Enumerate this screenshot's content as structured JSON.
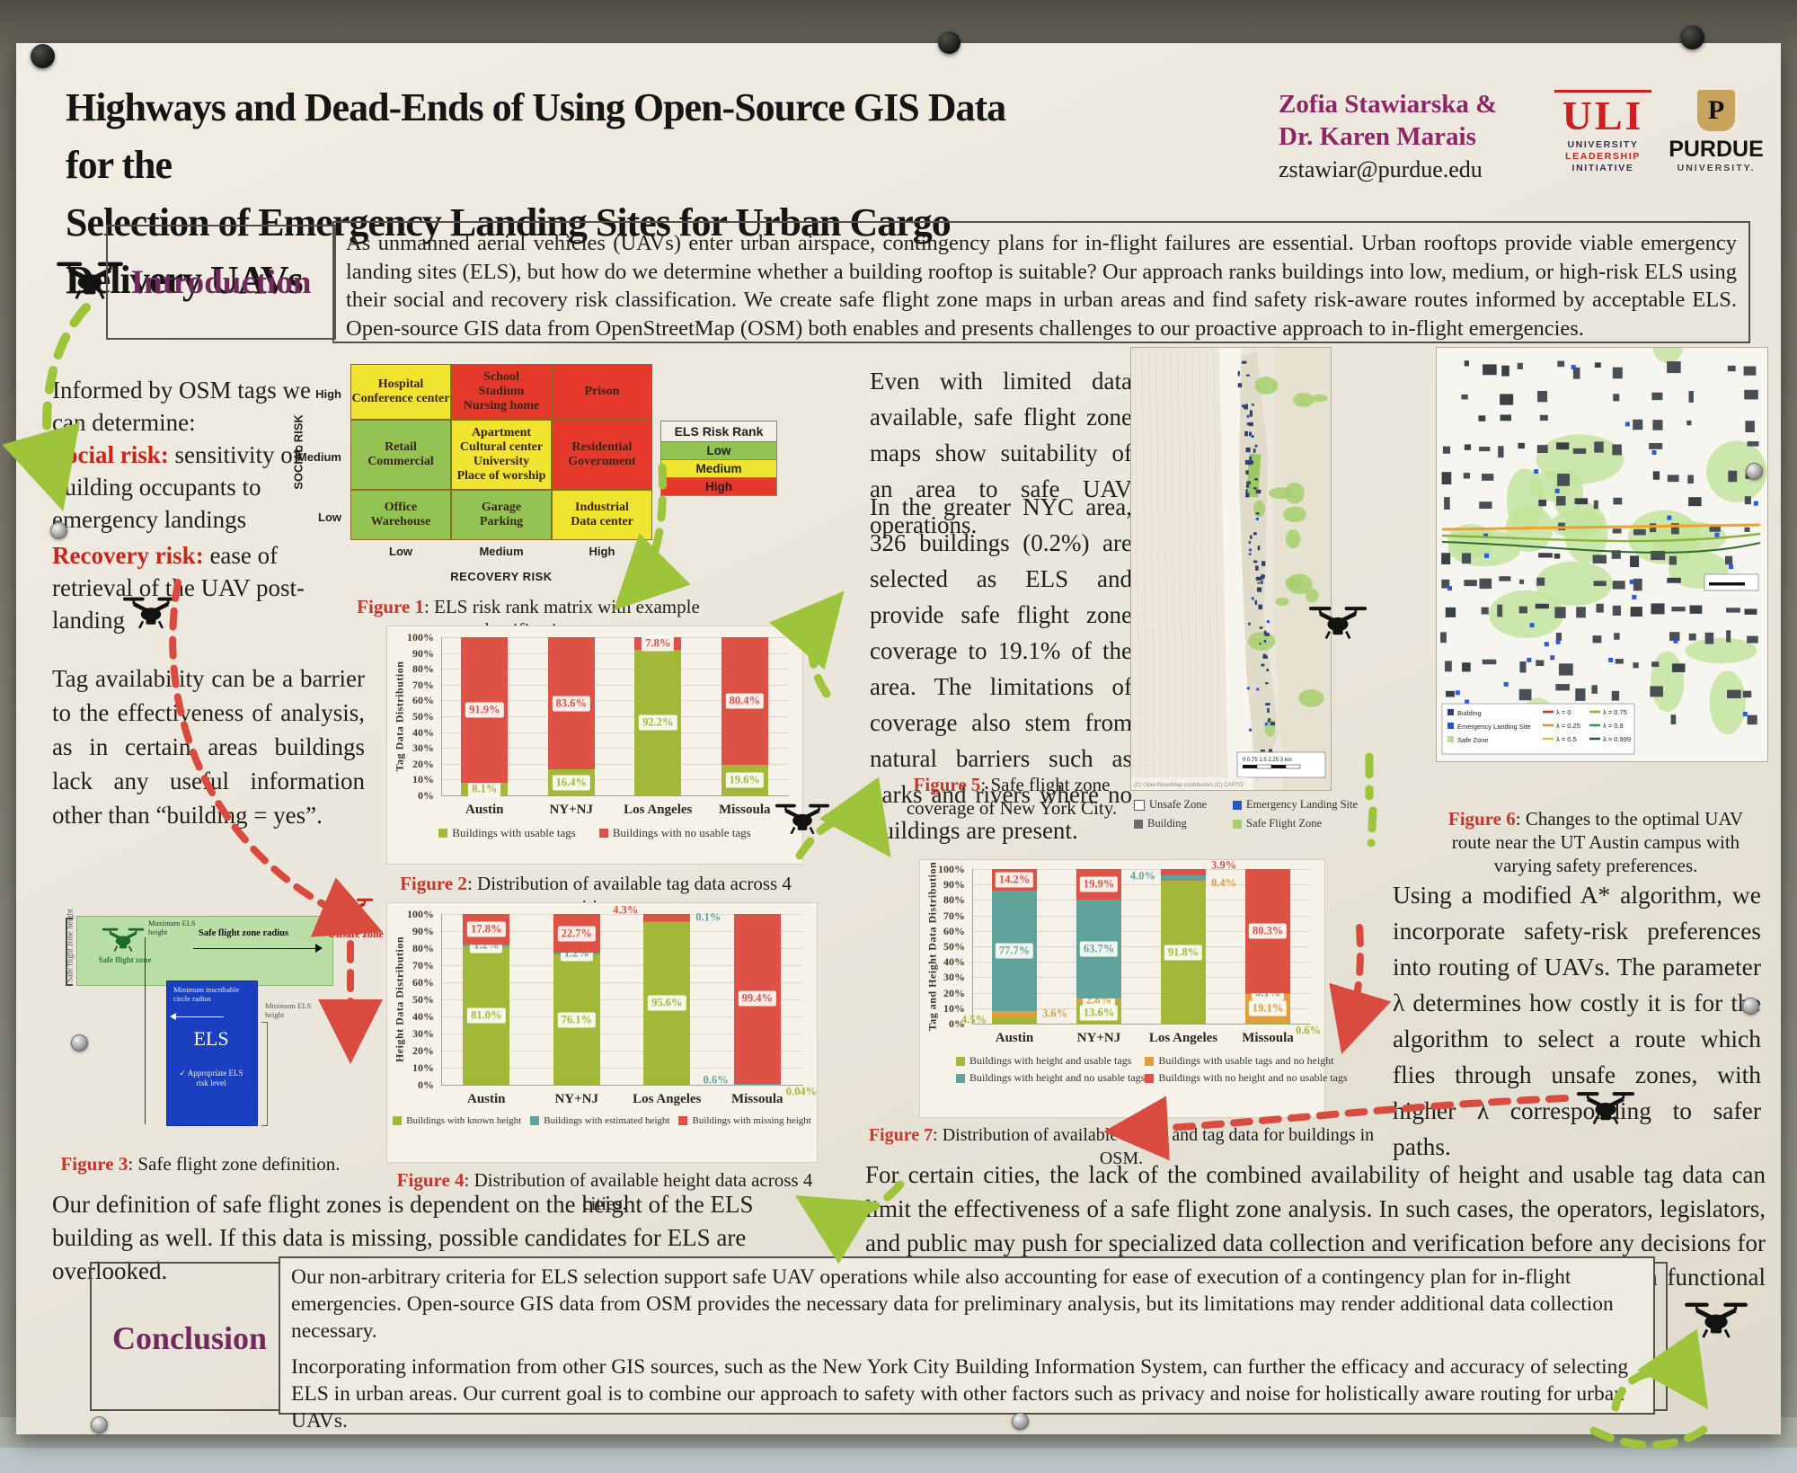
{
  "poster": {
    "title_line1": "Highways and Dead-Ends of Using Open-Source GIS Data for the",
    "title_line2": "Selection of Emergency Landing Sites for Urban Cargo Delivery UAVs",
    "authors": {
      "line1": "Zofia Stawiarska &",
      "line2": "Dr. Karen Marais",
      "email": "zstawiar@purdue.edu"
    },
    "logos": {
      "uli": {
        "acronym": "ULI",
        "word1": "UNIVERSITY",
        "word2": "LEADERSHIP",
        "word3": "INITIATIVE"
      },
      "purdue": {
        "initial": "P",
        "name": "PURDUE",
        "sub": "UNIVERSITY."
      }
    }
  },
  "intro": {
    "heading": "Introduction",
    "text": "As unmanned aerial vehicles (UAVs) enter urban airspace, contingency plans for in-flight failures are essential. Urban rooftops provide viable emergency landing sites (ELS), but how do we determine whether a building rooftop is suitable? Our approach ranks buildings into low, medium, or high-risk ELS using their social and recovery risk classification. We create safe flight zone maps in urban areas and find safety risk-aware routes informed by acceptable ELS. Open-source GIS data from OpenStreetMap (OSM) both enables and presents challenges to our proactive approach to in-flight emergencies."
  },
  "left": {
    "osm_intro": "Informed by OSM tags we can determine:",
    "social_risk_label": "Social risk:",
    "social_risk_text": " sensitivity of building occupants to emergency landings",
    "recovery_risk_label": "Recovery risk:",
    "recovery_risk_text": " ease of retrieval of the UAV post-landing",
    "tag_availability": "Tag availability can be a barrier to the effectiveness of analysis, as in certain areas buildings lack any useful information other than “building = yes”.",
    "unsafe_zone_label": "Unsafe zone",
    "safe_zone_note": "Our definition of safe flight zones is dependent on the height of the ELS building as well. If this data is missing, possible candidates for ELS are overlooked."
  },
  "matrix": {
    "y_axis": "SOCIAL RISK",
    "x_axis": "RECOVERY RISK",
    "row_labels": [
      "High",
      "Medium",
      "Low"
    ],
    "col_labels": [
      "Low",
      "Medium",
      "High"
    ],
    "rows": [
      {
        "cells": [
          {
            "risk": "med",
            "lines": [
              "Hospital",
              "Conference center"
            ]
          },
          {
            "risk": "high",
            "lines": [
              "School",
              "Stadium",
              "Nursing home"
            ]
          },
          {
            "risk": "high",
            "lines": [
              "Prison"
            ]
          }
        ]
      },
      {
        "cells": [
          {
            "risk": "low",
            "lines": [
              "Retail",
              "Commercial"
            ]
          },
          {
            "risk": "med",
            "lines": [
              "Apartment",
              "Cultural center",
              "University",
              "Place of worship"
            ]
          },
          {
            "risk": "high",
            "lines": [
              "Residential",
              "Government"
            ]
          }
        ]
      },
      {
        "cells": [
          {
            "risk": "low",
            "lines": [
              "Office",
              "Warehouse"
            ]
          },
          {
            "risk": "low",
            "lines": [
              "Garage",
              "Parking"
            ]
          },
          {
            "risk": "med",
            "lines": [
              "Industrial",
              "Data center"
            ]
          }
        ]
      }
    ],
    "legend": {
      "title": "ELS Risk Rank",
      "items": [
        {
          "label": "Low",
          "color": "#92c353"
        },
        {
          "label": "Medium",
          "color": "#f0e430"
        },
        {
          "label": "High",
          "color": "#e6392b"
        }
      ]
    }
  },
  "figures": {
    "fig1": {
      "label": "Figure 1",
      "caption": ": ELS risk rank matrix with example classification."
    },
    "fig2": {
      "label": "Figure 2",
      "caption": ": Distribution of available tag data across 4 cities."
    },
    "fig3": {
      "label": "Figure 3",
      "caption": ": Safe flight zone definition."
    },
    "fig4": {
      "label": "Figure 4",
      "caption": ": Distribution of available height data across 4 cities."
    },
    "fig5": {
      "label": "Figure 5",
      "caption": ": Safe flight zone coverage of New York City."
    },
    "fig6": {
      "label": "Figure 6",
      "caption": ": Changes to the optimal UAV route near the UT Austin campus with varying safety preferences."
    },
    "fig7": {
      "label": "Figure 7",
      "caption": ": Distribution of available height and tag data for buildings in OSM."
    }
  },
  "fig3_diagram": {
    "zone_height": "Safe flight zone height",
    "safe_flight_zone": "Safe flight zone",
    "radius": "Safe flight zone radius",
    "max_els": "Maximum ELS height",
    "min_circle": "Minimum inscribable circle radius",
    "els": "ELS",
    "appropriate": "✓ Appropriate ELS risk level",
    "min_els": "Minimum ELS height"
  },
  "middle": {
    "para1": "Even with limited data available, safe flight zone maps show suitability of an area to safe UAV operations.",
    "para2": "In the greater NYC area, 326 buildings (0.2%) are selected as ELS and provide safe flight zone coverage to 19.1% of the area. The limitations of coverage also stem from natural barriers such as parks and rivers where no buildings are present."
  },
  "nyc_map": {
    "attribution": "(C) OpenStreetMap contributors (C) CARTO",
    "scale_text": "0  0.75  1.5  2.25  3 km",
    "legend": [
      {
        "label": "Unsafe Zone",
        "color": "#ffffff",
        "border": true
      },
      {
        "label": "Emergency Landing Site",
        "color": "#2457c5"
      },
      {
        "label": "Building",
        "color": "#6b6b6b"
      },
      {
        "label": "Safe Flight Zone",
        "color": "#a7cf6b"
      }
    ]
  },
  "fig6_map": {
    "legend_items": [
      {
        "label": "Building",
        "color": "#2a3d8f"
      },
      {
        "label": "Emergency Landing Site",
        "color": "#2457c5"
      },
      {
        "label": "Safe Zone",
        "color": "#b4e08c"
      }
    ],
    "lambda_items": [
      {
        "label": "λ = 0",
        "color": "#d62f2a"
      },
      {
        "label": "λ = 0.25",
        "color": "#e8862a"
      },
      {
        "label": "λ = 0.5",
        "color": "#d6c62a"
      },
      {
        "label": "λ = 0.75",
        "color": "#8ab33c"
      },
      {
        "label": "λ = 0.9",
        "color": "#3f8c3a"
      },
      {
        "label": "λ = 0.999",
        "color": "#1e5c2a"
      }
    ]
  },
  "right": {
    "route_text": "Using a modified A* algorithm, we incorporate safety-risk preferences into routing of UAVs. The parameter λ determines how costly it is for the algorithm to select a route which flies through unsafe zones, with higher λ corresponding to safer paths."
  },
  "bottom": {
    "cities_text": "For certain cities, the lack of the combined availability of height and usable tag data can limit the effectiveness of a safe flight zone analysis. In such cases, the operators, legislators, and public may push for specialized data collection and verification before any decisions for UAV operations are made. Open-source GIS data through OSM may not be a functional source of data in such cases."
  },
  "conclusion": {
    "heading": "Conclusion",
    "para1": "Our non-arbitrary criteria for ELS selection support safe UAV operations while also accounting for ease of execution of a contingency plan for in-flight emergencies. Open-source GIS data from OSM provides the necessary data for preliminary analysis, but its limitations may render additional data collection necessary.",
    "para2": "Incorporating information from other GIS sources, such as the New York City Building Information System, can further the efficacy and accuracy of selecting ELS in urban areas. Our current goal is to combine our approach to safety with other factors such as privacy and noise for holistically aware routing for urban UAVs."
  },
  "chart_data": [
    {
      "id": "fig2",
      "type": "bar",
      "stacked": true,
      "title": "Distribution of available tag data across 4 cities",
      "categories": [
        "Austin",
        "NY+NJ",
        "Los Angeles",
        "Missoula"
      ],
      "ylabel": "Tag Data Distribution",
      "ylim": [
        0,
        100
      ],
      "ytick_step": 10,
      "grid": true,
      "legend_position": "bottom",
      "series": [
        {
          "name": "Buildings with usable tags",
          "color": "#a3b838",
          "values": [
            8.1,
            16.4,
            92.2,
            19.6
          ],
          "out": []
        },
        {
          "name": "Buildings with no usable tags",
          "color": "#de5145",
          "values": [
            91.9,
            83.6,
            7.8,
            80.4
          ],
          "out": []
        }
      ]
    },
    {
      "id": "fig4",
      "type": "bar",
      "stacked": true,
      "title": "Distribution of available height data across 4 cities",
      "categories": [
        "Austin",
        "NY+NJ",
        "Los Angeles",
        "Missoula"
      ],
      "ylabel": "Height Data Distribution",
      "ylim": [
        0,
        100
      ],
      "ytick_step": 10,
      "grid": true,
      "legend_position": "bottom",
      "series": [
        {
          "name": "Buildings with known height",
          "color": "#a3b838",
          "values": [
            81.0,
            76.1,
            95.6,
            0.04
          ],
          "out": [
            {
              "i": 3,
              "side": "right",
              "dy": 10
            }
          ]
        },
        {
          "name": "Buildings with estimated height",
          "color": "#5fa39b",
          "values": [
            1.2,
            1.2,
            0.1,
            0.6
          ],
          "out": [
            {
              "i": 2,
              "side": "right",
              "dy": -4
            },
            {
              "i": 3,
              "side": "left",
              "dy": -4
            }
          ]
        },
        {
          "name": "Buildings with missing height",
          "color": "#de5145",
          "values": [
            17.8,
            22.7,
            4.3,
            99.4
          ],
          "out": [
            {
              "i": 2,
              "side": "left",
              "dy": -8
            }
          ]
        }
      ]
    },
    {
      "id": "fig7",
      "type": "bar",
      "stacked": true,
      "title": "Distribution of available height and tag data for buildings in OSM",
      "categories": [
        "Austin",
        "NY+NJ",
        "Los Angeles",
        "Missoula"
      ],
      "ylabel": "Tag and Height Data Distribution",
      "ylim": [
        0,
        100
      ],
      "ytick_step": 10,
      "grid": true,
      "legend_position": "bottom",
      "series": [
        {
          "name": "Buildings with height and usable tags",
          "color": "#a3b838",
          "values": [
            4.5,
            13.6,
            91.8,
            0.6
          ],
          "out": [
            {
              "i": 0,
              "side": "left",
              "dy": 0
            },
            {
              "i": 3,
              "side": "right",
              "dy": 10
            }
          ]
        },
        {
          "name": "Buildings with usable tags and no height",
          "color": "#e39c3c",
          "values": [
            3.6,
            2.8,
            0.4,
            19.1
          ],
          "out": [
            {
              "i": 0,
              "side": "right",
              "dy": 0
            },
            {
              "i": 2,
              "side": "right",
              "dy": 2
            }
          ]
        },
        {
          "name": "Buildings with height and no usable tags",
          "color": "#5fa39b",
          "values": [
            77.7,
            63.7,
            4.0,
            0.1
          ],
          "out": [
            {
              "i": 2,
              "side": "left",
              "dy": -2
            }
          ]
        },
        {
          "name": "Buildings with no height and no usable tags",
          "color": "#de5145",
          "values": [
            14.2,
            19.9,
            3.9,
            80.3
          ],
          "out": [
            {
              "i": 2,
              "side": "right",
              "dy": -14
            }
          ]
        }
      ]
    }
  ]
}
